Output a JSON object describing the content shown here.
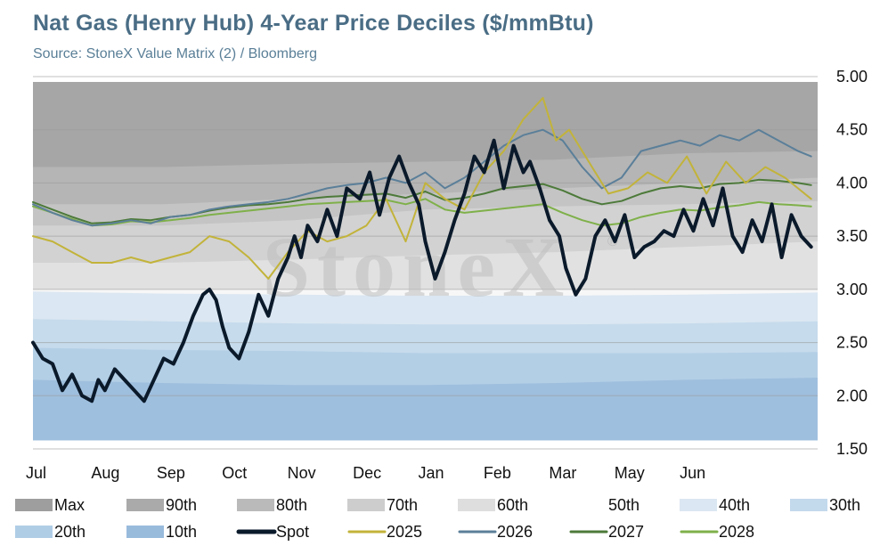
{
  "title": "Nat Gas (Henry Hub) 4-Year Price Deciles ($/mmBtu)",
  "subtitle": "Source: StoneX Value Matrix (2) / Bloomberg",
  "watermark": "StoneX",
  "watermark_mark": "®",
  "chart_data": {
    "type": "line",
    "ylim": [
      1.5,
      5.0
    ],
    "yticks": [
      "1.50",
      "2.00",
      "2.50",
      "3.00",
      "3.50",
      "4.00",
      "4.50",
      "5.00"
    ],
    "ytick_values": [
      1.5,
      2.0,
      2.5,
      3.0,
      3.5,
      4.0,
      4.5,
      5.0
    ],
    "x_domain": [
      0,
      12
    ],
    "months": [
      {
        "label": "Jul",
        "x": 0
      },
      {
        "label": "Aug",
        "x": 1
      },
      {
        "label": "Sep",
        "x": 2
      },
      {
        "label": "Oct",
        "x": 3
      },
      {
        "label": "Nov",
        "x": 4
      },
      {
        "label": "Dec",
        "x": 5
      },
      {
        "label": "Jan",
        "x": 6
      },
      {
        "label": "Feb",
        "x": 7
      },
      {
        "label": "Mar",
        "x": 8
      },
      {
        "label": "May",
        "x": 9
      },
      {
        "label": "Jun",
        "x": 10
      }
    ],
    "grid": true,
    "legend_position": "bottom",
    "decile_x": [
      0,
      2,
      4,
      6,
      8,
      10,
      12
    ],
    "deciles": [
      {
        "name": "Max",
        "color": "#a6a6a6",
        "values": [
          4.95,
          4.95,
          4.95,
          4.95,
          4.95,
          4.95,
          4.95
        ]
      },
      {
        "name": "90th",
        "color": "#b5b5b5",
        "values": [
          4.15,
          4.15,
          4.18,
          4.2,
          4.22,
          4.28,
          4.3
        ]
      },
      {
        "name": "80th",
        "color": "#c4c4c4",
        "values": [
          3.8,
          3.8,
          3.85,
          3.9,
          3.95,
          4.0,
          4.05
        ]
      },
      {
        "name": "70th",
        "color": "#d2d2d2",
        "values": [
          3.6,
          3.6,
          3.65,
          3.75,
          3.78,
          3.8,
          3.83
        ]
      },
      {
        "name": "60th",
        "color": "#e1e1e1",
        "values": [
          3.25,
          3.25,
          3.28,
          3.32,
          3.35,
          3.4,
          3.45
        ]
      },
      {
        "name": "50th",
        "color": "#f7f7f7",
        "values": [
          3.0,
          3.0,
          3.0,
          3.0,
          3.0,
          3.0,
          3.0
        ]
      },
      {
        "name": "40th",
        "color": "#dbe7f2",
        "values": [
          2.98,
          2.96,
          2.95,
          2.94,
          2.94,
          2.95,
          2.97
        ]
      },
      {
        "name": "30th",
        "color": "#c6dbec",
        "values": [
          2.72,
          2.7,
          2.68,
          2.67,
          2.67,
          2.68,
          2.7
        ]
      },
      {
        "name": "20th",
        "color": "#b3cfe6",
        "values": [
          2.45,
          2.43,
          2.42,
          2.4,
          2.4,
          2.4,
          2.41
        ]
      },
      {
        "name": "10th",
        "color": "#9fbfde",
        "values": [
          2.15,
          2.12,
          2.1,
          2.1,
          2.12,
          2.15,
          2.17
        ]
      }
    ],
    "deciles_floor": 1.58,
    "series": [
      {
        "name": "Spot",
        "color": "#0b1a2b",
        "x": [
          0,
          0.15,
          0.3,
          0.45,
          0.6,
          0.75,
          0.9,
          1.0,
          1.1,
          1.25,
          1.4,
          1.55,
          1.7,
          1.85,
          2.0,
          2.15,
          2.3,
          2.45,
          2.6,
          2.7,
          2.8,
          2.9,
          3.0,
          3.15,
          3.3,
          3.45,
          3.6,
          3.75,
          3.9,
          4.0,
          4.1,
          4.2,
          4.35,
          4.5,
          4.65,
          4.8,
          5.0,
          5.15,
          5.3,
          5.45,
          5.6,
          5.75,
          5.9,
          6.0,
          6.15,
          6.3,
          6.45,
          6.6,
          6.75,
          6.9,
          7.05,
          7.2,
          7.35,
          7.5,
          7.6,
          7.75,
          7.9,
          8.05,
          8.15,
          8.3,
          8.45,
          8.6,
          8.75,
          8.9,
          9.05,
          9.2,
          9.35,
          9.5,
          9.65,
          9.8,
          9.95,
          10.1,
          10.25,
          10.4,
          10.55,
          10.7,
          10.85,
          11.0,
          11.15,
          11.3,
          11.45,
          11.6,
          11.75,
          11.9
        ],
        "values": [
          2.5,
          2.35,
          2.3,
          2.05,
          2.2,
          2.0,
          1.95,
          2.15,
          2.05,
          2.25,
          2.15,
          2.05,
          1.95,
          2.15,
          2.35,
          2.3,
          2.5,
          2.75,
          2.95,
          3.0,
          2.9,
          2.65,
          2.45,
          2.35,
          2.6,
          2.95,
          2.75,
          3.1,
          3.3,
          3.5,
          3.3,
          3.6,
          3.45,
          3.75,
          3.5,
          3.95,
          3.85,
          4.1,
          3.7,
          4.05,
          4.25,
          4.0,
          3.8,
          3.45,
          3.1,
          3.35,
          3.65,
          3.9,
          4.25,
          4.1,
          4.4,
          3.95,
          4.35,
          4.1,
          4.2,
          3.95,
          3.65,
          3.5,
          3.2,
          2.95,
          3.1,
          3.5,
          3.65,
          3.45,
          3.7,
          3.3,
          3.4,
          3.45,
          3.55,
          3.5,
          3.75,
          3.55,
          3.85,
          3.6,
          3.95,
          3.5,
          3.35,
          3.65,
          3.45,
          3.8,
          3.3,
          3.7,
          3.5,
          3.4
        ]
      },
      {
        "name": "2025",
        "color": "#c2b33a",
        "x": [
          0,
          0.3,
          0.6,
          0.9,
          1.2,
          1.5,
          1.8,
          2.1,
          2.4,
          2.7,
          3.0,
          3.3,
          3.6,
          3.9,
          4.2,
          4.5,
          4.8,
          5.1,
          5.4,
          5.7,
          6.0,
          6.3,
          6.6,
          6.9,
          7.2,
          7.5,
          7.8,
          8.0,
          8.2,
          8.5,
          8.8,
          9.1,
          9.4,
          9.7,
          10.0,
          10.3,
          10.6,
          10.9,
          11.2,
          11.5,
          11.9
        ],
        "values": [
          3.5,
          3.45,
          3.35,
          3.25,
          3.25,
          3.3,
          3.25,
          3.3,
          3.35,
          3.5,
          3.45,
          3.3,
          3.1,
          3.35,
          3.55,
          3.45,
          3.5,
          3.6,
          3.85,
          3.45,
          4.0,
          3.85,
          3.75,
          4.1,
          4.3,
          4.6,
          4.8,
          4.4,
          4.5,
          4.2,
          3.9,
          3.95,
          4.1,
          4.0,
          4.25,
          3.9,
          4.2,
          4.0,
          4.15,
          4.05,
          3.85
        ]
      },
      {
        "name": "2026",
        "color": "#5b7f99",
        "x": [
          0,
          0.3,
          0.6,
          0.9,
          1.2,
          1.5,
          1.8,
          2.1,
          2.4,
          2.7,
          3.0,
          3.3,
          3.6,
          3.9,
          4.2,
          4.5,
          4.8,
          5.1,
          5.4,
          5.7,
          6.0,
          6.3,
          6.6,
          6.9,
          7.2,
          7.5,
          7.8,
          8.1,
          8.4,
          8.7,
          9.0,
          9.3,
          9.6,
          9.9,
          10.2,
          10.5,
          10.8,
          11.1,
          11.4,
          11.7,
          11.9
        ],
        "values": [
          3.8,
          3.72,
          3.65,
          3.6,
          3.62,
          3.65,
          3.62,
          3.68,
          3.7,
          3.75,
          3.78,
          3.8,
          3.82,
          3.85,
          3.9,
          3.95,
          3.98,
          4.0,
          4.05,
          4.0,
          4.1,
          3.95,
          4.05,
          4.2,
          4.35,
          4.45,
          4.5,
          4.4,
          4.15,
          3.95,
          4.05,
          4.3,
          4.35,
          4.4,
          4.35,
          4.45,
          4.4,
          4.5,
          4.4,
          4.3,
          4.25
        ]
      },
      {
        "name": "2027",
        "color": "#4d7a3a",
        "x": [
          0,
          0.3,
          0.6,
          0.9,
          1.2,
          1.5,
          1.8,
          2.1,
          2.4,
          2.7,
          3.0,
          3.3,
          3.6,
          3.9,
          4.2,
          4.5,
          4.8,
          5.1,
          5.4,
          5.7,
          6.0,
          6.3,
          6.6,
          6.9,
          7.2,
          7.5,
          7.8,
          8.1,
          8.4,
          8.7,
          9.0,
          9.3,
          9.6,
          9.9,
          10.2,
          10.5,
          10.8,
          11.1,
          11.4,
          11.7,
          11.9
        ],
        "values": [
          3.82,
          3.75,
          3.68,
          3.62,
          3.63,
          3.66,
          3.65,
          3.68,
          3.7,
          3.74,
          3.77,
          3.79,
          3.8,
          3.82,
          3.85,
          3.87,
          3.88,
          3.89,
          3.9,
          3.86,
          3.92,
          3.84,
          3.86,
          3.9,
          3.95,
          3.97,
          3.99,
          3.93,
          3.85,
          3.8,
          3.83,
          3.9,
          3.95,
          3.97,
          3.95,
          3.99,
          4.0,
          4.03,
          4.02,
          4.0,
          3.98
        ]
      },
      {
        "name": "2028",
        "color": "#7fb04a",
        "x": [
          0,
          0.3,
          0.6,
          0.9,
          1.2,
          1.5,
          1.8,
          2.1,
          2.4,
          2.7,
          3.0,
          3.3,
          3.6,
          3.9,
          4.2,
          4.5,
          4.8,
          5.1,
          5.4,
          5.7,
          6.0,
          6.3,
          6.6,
          6.9,
          7.2,
          7.5,
          7.8,
          8.1,
          8.4,
          8.7,
          9.0,
          9.3,
          9.6,
          9.9,
          10.2,
          10.5,
          10.8,
          11.1,
          11.4,
          11.7,
          11.9
        ],
        "values": [
          3.78,
          3.72,
          3.66,
          3.6,
          3.61,
          3.64,
          3.63,
          3.65,
          3.67,
          3.7,
          3.72,
          3.74,
          3.76,
          3.78,
          3.8,
          3.81,
          3.82,
          3.83,
          3.84,
          3.8,
          3.85,
          3.75,
          3.72,
          3.74,
          3.76,
          3.78,
          3.8,
          3.72,
          3.65,
          3.6,
          3.62,
          3.68,
          3.72,
          3.75,
          3.74,
          3.77,
          3.79,
          3.82,
          3.8,
          3.79,
          3.78
        ]
      }
    ],
    "legend": [
      {
        "name": "Max",
        "kind": "box",
        "color": "#9e9e9e",
        "row": 0,
        "col": 0
      },
      {
        "name": "90th",
        "kind": "box",
        "color": "#aaaaaa",
        "row": 0,
        "col": 1
      },
      {
        "name": "80th",
        "kind": "box",
        "color": "#bababa",
        "row": 0,
        "col": 2
      },
      {
        "name": "70th",
        "kind": "box",
        "color": "#cdcdcd",
        "row": 0,
        "col": 3
      },
      {
        "name": "60th",
        "kind": "box",
        "color": "#dedede",
        "row": 0,
        "col": 4
      },
      {
        "name": "50th",
        "kind": "box",
        "color": "#ffffff",
        "row": 0,
        "col": 5
      },
      {
        "name": "40th",
        "kind": "box",
        "color": "#dbe7f2",
        "row": 0,
        "col": 6
      },
      {
        "name": "30th",
        "kind": "box",
        "color": "#c3d9ec",
        "row": 0,
        "col": 7
      },
      {
        "name": "20th",
        "kind": "box",
        "color": "#b0cde6",
        "row": 1,
        "col": 0
      },
      {
        "name": "10th",
        "kind": "box",
        "color": "#98bbdc",
        "row": 1,
        "col": 1
      },
      {
        "name": "Spot",
        "kind": "line",
        "color": "#0b1a2b",
        "row": 1,
        "col": 2
      },
      {
        "name": "2025",
        "kind": "line",
        "color": "#c2b33a",
        "row": 1,
        "col": 3
      },
      {
        "name": "2026",
        "kind": "line",
        "color": "#5b7f99",
        "row": 1,
        "col": 4
      },
      {
        "name": "2027",
        "kind": "line",
        "color": "#4d7a3a",
        "row": 1,
        "col": 5
      },
      {
        "name": "2028",
        "kind": "line",
        "color": "#7fb04a",
        "row": 1,
        "col": 6
      }
    ]
  }
}
